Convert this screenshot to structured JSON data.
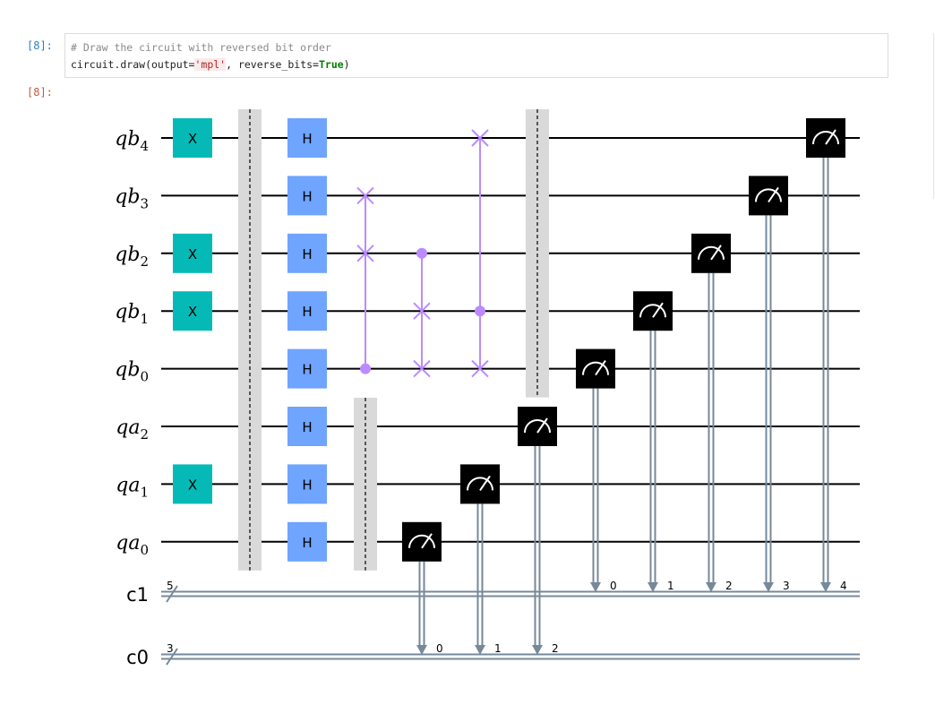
{
  "cell": {
    "in_prompt": "[8]:",
    "out_prompt": "[8]:",
    "code_comment": "# Draw the circuit with reversed bit order",
    "code_prefix": "circuit.draw(output=",
    "code_str": "'mpl'",
    "code_mid": ", reverse_bits=",
    "code_kw": "True",
    "code_suffix": ")"
  },
  "circuit": {
    "qubits": [
      {
        "reg": "qb",
        "idx": "4"
      },
      {
        "reg": "qb",
        "idx": "3"
      },
      {
        "reg": "qb",
        "idx": "2"
      },
      {
        "reg": "qb",
        "idx": "1"
      },
      {
        "reg": "qb",
        "idx": "0"
      },
      {
        "reg": "qa",
        "idx": "2"
      },
      {
        "reg": "qa",
        "idx": "1"
      },
      {
        "reg": "qa",
        "idx": "0"
      }
    ],
    "clbits": [
      {
        "name": "c1",
        "size": "5"
      },
      {
        "name": "c0",
        "size": "3"
      }
    ],
    "x_gate": {
      "label": "X",
      "color": "#05bab6",
      "rows": [
        0,
        2,
        3,
        6
      ]
    },
    "h_gate": {
      "label": "H",
      "color": "#6fa4ff",
      "rows": [
        0,
        1,
        2,
        3,
        4,
        5,
        6,
        7
      ]
    },
    "swap_color": "#bb8bff",
    "controlled_swaps": [
      {
        "control": 4,
        "targets": [
          2,
          1
        ]
      },
      {
        "control": 2,
        "targets": [
          4,
          3
        ]
      },
      {
        "control": 3,
        "targets": [
          4,
          0
        ]
      }
    ],
    "barrier_color": "#d9d9d9",
    "barriers": [
      {
        "from": 0,
        "to": 7
      },
      {
        "from": 5,
        "to": 7
      },
      {
        "from": 0,
        "to": 4
      }
    ],
    "measure_color": "#000000",
    "classical_color": "#778899",
    "measurements": [
      {
        "qubit": 7,
        "creg": 1,
        "bit": "0"
      },
      {
        "qubit": 6,
        "creg": 1,
        "bit": "1"
      },
      {
        "qubit": 5,
        "creg": 1,
        "bit": "2"
      },
      {
        "qubit": 4,
        "creg": 0,
        "bit": "0"
      },
      {
        "qubit": 3,
        "creg": 0,
        "bit": "1"
      },
      {
        "qubit": 2,
        "creg": 0,
        "bit": "2"
      },
      {
        "qubit": 1,
        "creg": 0,
        "bit": "3"
      },
      {
        "qubit": 0,
        "creg": 0,
        "bit": "4"
      }
    ]
  }
}
